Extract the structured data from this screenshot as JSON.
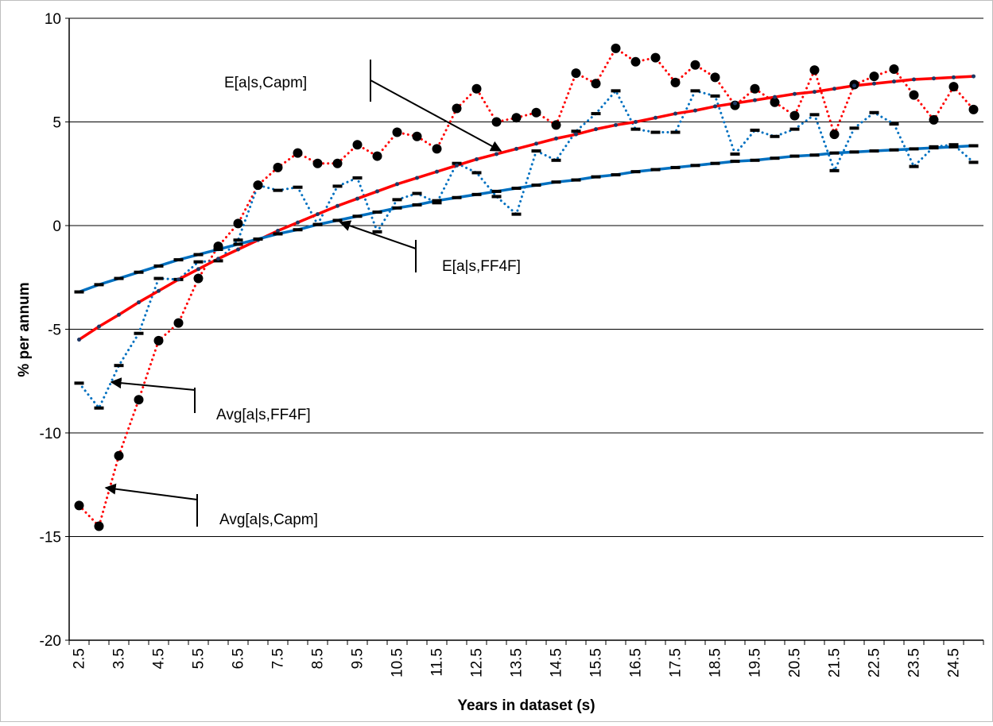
{
  "chart_data": {
    "type": "line",
    "x_label": "Years in dataset (s)",
    "y_label": "% per annum",
    "categories": [
      "2.5",
      null,
      "3.5",
      null,
      "4.5",
      null,
      "5.5",
      null,
      "6.5",
      null,
      "7.5",
      null,
      "8.5",
      null,
      "9.5",
      null,
      "10.5",
      null,
      "11.5",
      null,
      "12.5",
      null,
      "13.5",
      null,
      "14.5",
      null,
      "15.5",
      null,
      "16.5",
      null,
      "17.5",
      null,
      "18.5",
      null,
      "19.5",
      null,
      "20.5",
      null,
      "21.5",
      null,
      "22.5",
      null,
      "23.5",
      null,
      "24.5",
      null
    ],
    "ylim": [
      -20,
      10
    ],
    "yticks": [
      -20,
      -15,
      -10,
      -5,
      0,
      5,
      10
    ],
    "grid": true,
    "series": [
      {
        "name": "Avg[a|s,Capm]",
        "color": "#ff0000",
        "line_style": "dotted",
        "marker": "circle",
        "values": [
          -13.5,
          -14.5,
          -11.1,
          -8.4,
          -5.55,
          -4.7,
          -2.55,
          -1.0,
          0.1,
          1.95,
          2.8,
          3.5,
          3.0,
          3.0,
          3.9,
          3.35,
          4.5,
          4.3,
          3.7,
          5.65,
          6.6,
          5.0,
          5.2,
          5.45,
          4.85,
          7.35,
          6.85,
          8.55,
          7.9,
          8.1,
          6.9,
          7.75,
          7.15,
          5.8,
          6.6,
          5.95,
          5.3,
          7.5,
          4.4,
          6.8,
          7.2,
          7.55,
          6.3,
          5.1,
          6.7,
          5.6
        ]
      },
      {
        "name": "Avg[a|s,FF4F]",
        "color": "#0070c0",
        "line_style": "dotted",
        "marker": "dash",
        "values": [
          -7.6,
          -8.8,
          -6.75,
          -5.2,
          -2.55,
          -2.6,
          -1.75,
          -1.7,
          -0.7,
          1.95,
          1.7,
          1.85,
          0.05,
          1.9,
          2.3,
          -0.3,
          1.25,
          1.55,
          1.1,
          3.0,
          2.55,
          1.4,
          0.55,
          3.6,
          3.15,
          4.55,
          5.4,
          6.5,
          4.65,
          4.5,
          4.5,
          6.5,
          6.25,
          3.45,
          4.6,
          4.3,
          4.65,
          5.35,
          2.65,
          4.7,
          5.45,
          4.9,
          2.85,
          3.8,
          3.9,
          3.05
        ]
      },
      {
        "name": "E[a|s,Capm]",
        "color": "#ff0000",
        "line_style": "solid",
        "marker": "dot",
        "values": [
          -5.5,
          -4.87,
          -4.3,
          -3.7,
          -3.15,
          -2.6,
          -2.1,
          -1.6,
          -1.15,
          -0.7,
          -0.25,
          0.15,
          0.55,
          0.95,
          1.3,
          1.65,
          2.0,
          2.3,
          2.6,
          2.9,
          3.2,
          3.45,
          3.7,
          3.95,
          4.2,
          4.4,
          4.65,
          4.85,
          5.0,
          5.2,
          5.4,
          5.55,
          5.75,
          5.9,
          6.05,
          6.2,
          6.35,
          6.45,
          6.6,
          6.75,
          6.85,
          6.95,
          7.05,
          7.1,
          7.15,
          7.2
        ]
      },
      {
        "name": "E[a|s,FF4F]",
        "color": "#0070c0",
        "line_style": "solid",
        "marker": "dash",
        "values": [
          -3.2,
          -2.85,
          -2.55,
          -2.25,
          -1.95,
          -1.65,
          -1.4,
          -1.15,
          -0.9,
          -0.65,
          -0.4,
          -0.2,
          0.05,
          0.25,
          0.45,
          0.65,
          0.85,
          1.0,
          1.2,
          1.35,
          1.5,
          1.65,
          1.8,
          1.95,
          2.1,
          2.2,
          2.35,
          2.45,
          2.6,
          2.7,
          2.8,
          2.9,
          3.0,
          3.1,
          3.15,
          3.25,
          3.35,
          3.4,
          3.5,
          3.55,
          3.6,
          3.65,
          3.7,
          3.75,
          3.8,
          3.85
        ]
      }
    ]
  }
}
